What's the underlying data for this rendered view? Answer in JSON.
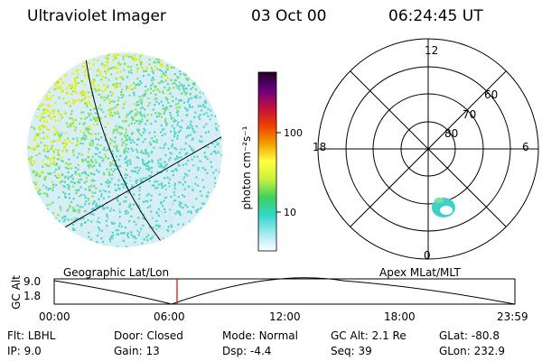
{
  "header": {
    "instrument": "Ultraviolet Imager",
    "date": "03 Oct 00",
    "time": "06:24:45 UT"
  },
  "geo_panel": {
    "label": "Geographic Lat/Lon",
    "colors": {
      "high": "#e8f000",
      "mid": "#8ee45a",
      "low": "#55d6c8",
      "faint": "#cfeaf2",
      "grid": "#000000"
    }
  },
  "colorbar": {
    "unit_label": "photon cm⁻²s⁻¹",
    "ticks": [
      "100",
      "10"
    ],
    "stops": [
      "#200020",
      "#6a0080",
      "#c01040",
      "#f04000",
      "#f0a000",
      "#ffff40",
      "#c8f040",
      "#40d060",
      "#30d8c8",
      "#a0e8f0",
      "#ffffff"
    ]
  },
  "polar_panel": {
    "label": "Apex MLat/MLT",
    "mlt_labels": {
      "top": "12",
      "left": "18",
      "right": "6",
      "bottom": "0"
    },
    "lat_labels": [
      "60",
      "70",
      "80"
    ],
    "blob_color": "#40d0c8"
  },
  "gc_plot": {
    "axis_label": "GC Alt",
    "y_ticks": [
      "9.0",
      "1.8"
    ],
    "x_ticks": [
      "00:00",
      "06:00",
      "12:00",
      "18:00",
      "23:59"
    ],
    "marker_color": "#e00000",
    "marker_time_fraction": 0.2669
  },
  "footer": {
    "row1": [
      {
        "key": "Flt:",
        "value": "LBHL"
      },
      {
        "key": "Door:",
        "value": "Closed"
      },
      {
        "key": "Mode:",
        "value": "Normal"
      },
      {
        "key": "GC Alt:",
        "value": "2.1 Re"
      },
      {
        "key": "GLat:",
        "value": "-80.8"
      }
    ],
    "row2": [
      {
        "key": "IP:",
        "value": "9.0"
      },
      {
        "key": "Gain:",
        "value": "13"
      },
      {
        "key": "Dsp:",
        "value": "-4.4"
      },
      {
        "key": "Seq:",
        "value": "39"
      },
      {
        "key": "GLon:",
        "value": "232.9"
      }
    ]
  }
}
